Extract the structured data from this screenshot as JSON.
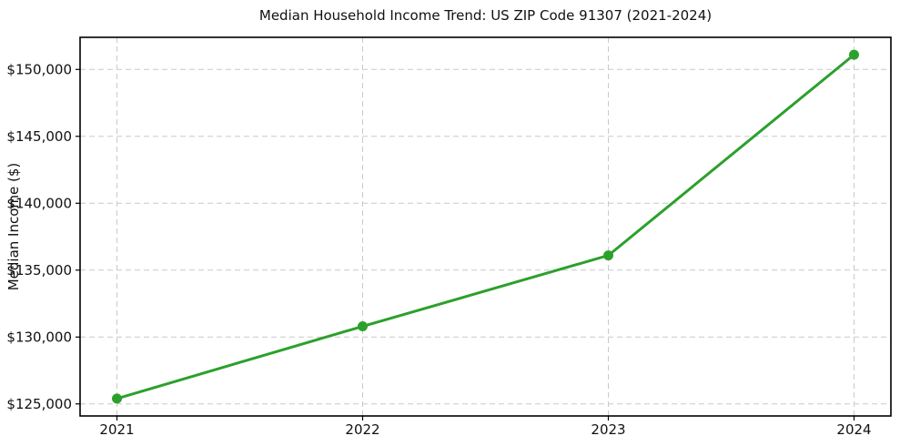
{
  "title": "Median Household Income Trend: US ZIP Code 91307 (2021-2024)",
  "chart_data": {
    "type": "line",
    "title": "Median Household Income Trend: US ZIP Code 91307 (2021-2024)",
    "xlabel": "",
    "ylabel": "Median Income ($)",
    "x": [
      2021,
      2022,
      2023,
      2024
    ],
    "values": [
      125400,
      130800,
      136100,
      151100
    ],
    "xticks": [
      2021,
      2022,
      2023,
      2024
    ],
    "xtick_labels": [
      "2021",
      "2022",
      "2023",
      "2024"
    ],
    "yticks": [
      125000,
      130000,
      135000,
      140000,
      145000,
      150000
    ],
    "ytick_labels": [
      "$125,000",
      "$130,000",
      "$135,000",
      "$140,000",
      "$145,000",
      "$150,000"
    ],
    "xlim": [
      2020.85,
      2024.15
    ],
    "ylim": [
      124100,
      152400
    ],
    "grid": true,
    "legend": "none",
    "line_color": "#2ca02c",
    "grid_color": "#c9c9c9",
    "axis_color": "#000000",
    "text_color": "#111111",
    "background_color": "#ffffff"
  }
}
